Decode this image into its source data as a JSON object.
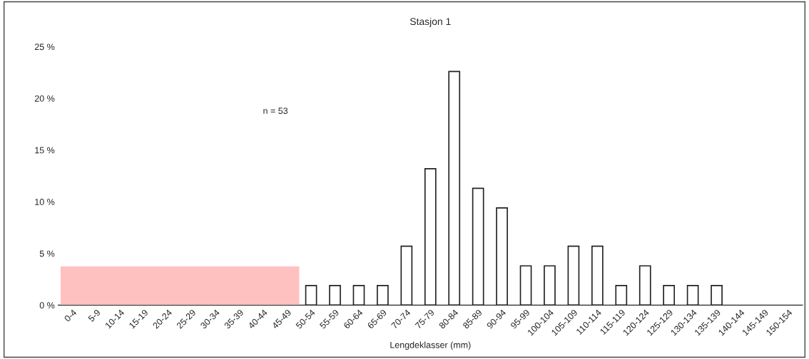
{
  "chart_data": {
    "type": "bar",
    "title": "Stasjon 1",
    "xlabel": "Lengdeklasser (mm)",
    "categories": [
      "0-4",
      "5-9",
      "10-14",
      "15-19",
      "20-24",
      "25-29",
      "30-34",
      "35-39",
      "40-44",
      "45-49",
      "50-54",
      "55-59",
      "60-64",
      "65-69",
      "70-74",
      "75-79",
      "80-84",
      "85-89",
      "90-94",
      "95-99",
      "100-104",
      "105-109",
      "110-114",
      "115-119",
      "120-124",
      "125-129",
      "130-134",
      "135-139",
      "140-144",
      "145-149",
      "150-154"
    ],
    "values": [
      0,
      0,
      0,
      0,
      0,
      0,
      0,
      0,
      0,
      0,
      1.9,
      1.9,
      1.9,
      1.9,
      5.7,
      13.2,
      22.6,
      11.3,
      9.4,
      3.8,
      3.8,
      5.7,
      5.7,
      1.9,
      3.8,
      1.9,
      1.9,
      1.9,
      0,
      0,
      0
    ],
    "color": "#ffffff",
    "ylim": [
      0,
      25
    ],
    "yticks": [
      {
        "value": 0,
        "label": "0 %"
      },
      {
        "value": 5,
        "label": "5 %"
      },
      {
        "value": 10,
        "label": "10 %"
      },
      {
        "value": 15,
        "label": "15 %"
      },
      {
        "value": 20,
        "label": "20 %"
      },
      {
        "value": 25,
        "label": "25 %"
      }
    ],
    "annotations": [
      "n = 53"
    ],
    "grid": false,
    "legend": false
  }
}
